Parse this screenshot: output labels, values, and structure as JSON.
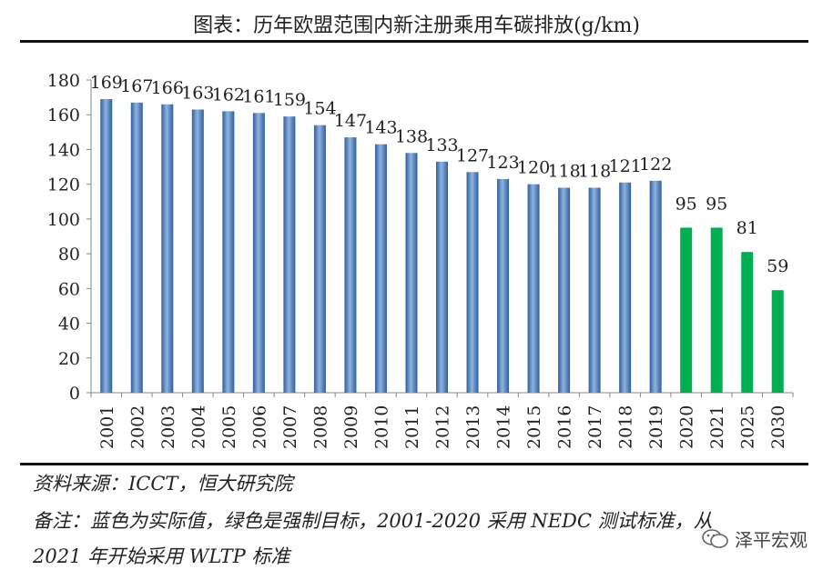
{
  "title": "图表：历年欧盟范围内新注册乘用车碳排放(g/km)",
  "source": "资料来源：ICCT，恒大研究院",
  "note_line1": "备注：蓝色为实际值，绿色是强制目标，2001-2020 采用 NEDC 测试标准，从",
  "note_line2": "2021 年开始采用 WLTP 标准",
  "watermark": "泽平宏观",
  "colors": {
    "actual": "#4f81bd",
    "target": "#00b050",
    "axis": "#888888"
  },
  "chart_data": {
    "type": "bar",
    "categories": [
      "2001",
      "2002",
      "2003",
      "2004",
      "2005",
      "2006",
      "2007",
      "2008",
      "2009",
      "2010",
      "2011",
      "2012",
      "2013",
      "2014",
      "2015",
      "2016",
      "2017",
      "2018",
      "2019",
      "2020",
      "2021",
      "2025",
      "2030"
    ],
    "series": [
      {
        "values": [
          169,
          167,
          166,
          163,
          162,
          161,
          159,
          154,
          147,
          143,
          138,
          133,
          127,
          123,
          120,
          118,
          118,
          121,
          122,
          null,
          null,
          null,
          null
        ]
      },
      {
        "values": [
          null,
          null,
          null,
          null,
          null,
          null,
          null,
          null,
          null,
          null,
          null,
          null,
          null,
          null,
          null,
          null,
          null,
          null,
          null,
          95,
          95,
          81,
          59
        ]
      }
    ],
    "ylim": [
      0,
      180
    ],
    "yticks": [
      0,
      20,
      40,
      60,
      80,
      100,
      120,
      140,
      160,
      180
    ],
    "grid": false
  }
}
